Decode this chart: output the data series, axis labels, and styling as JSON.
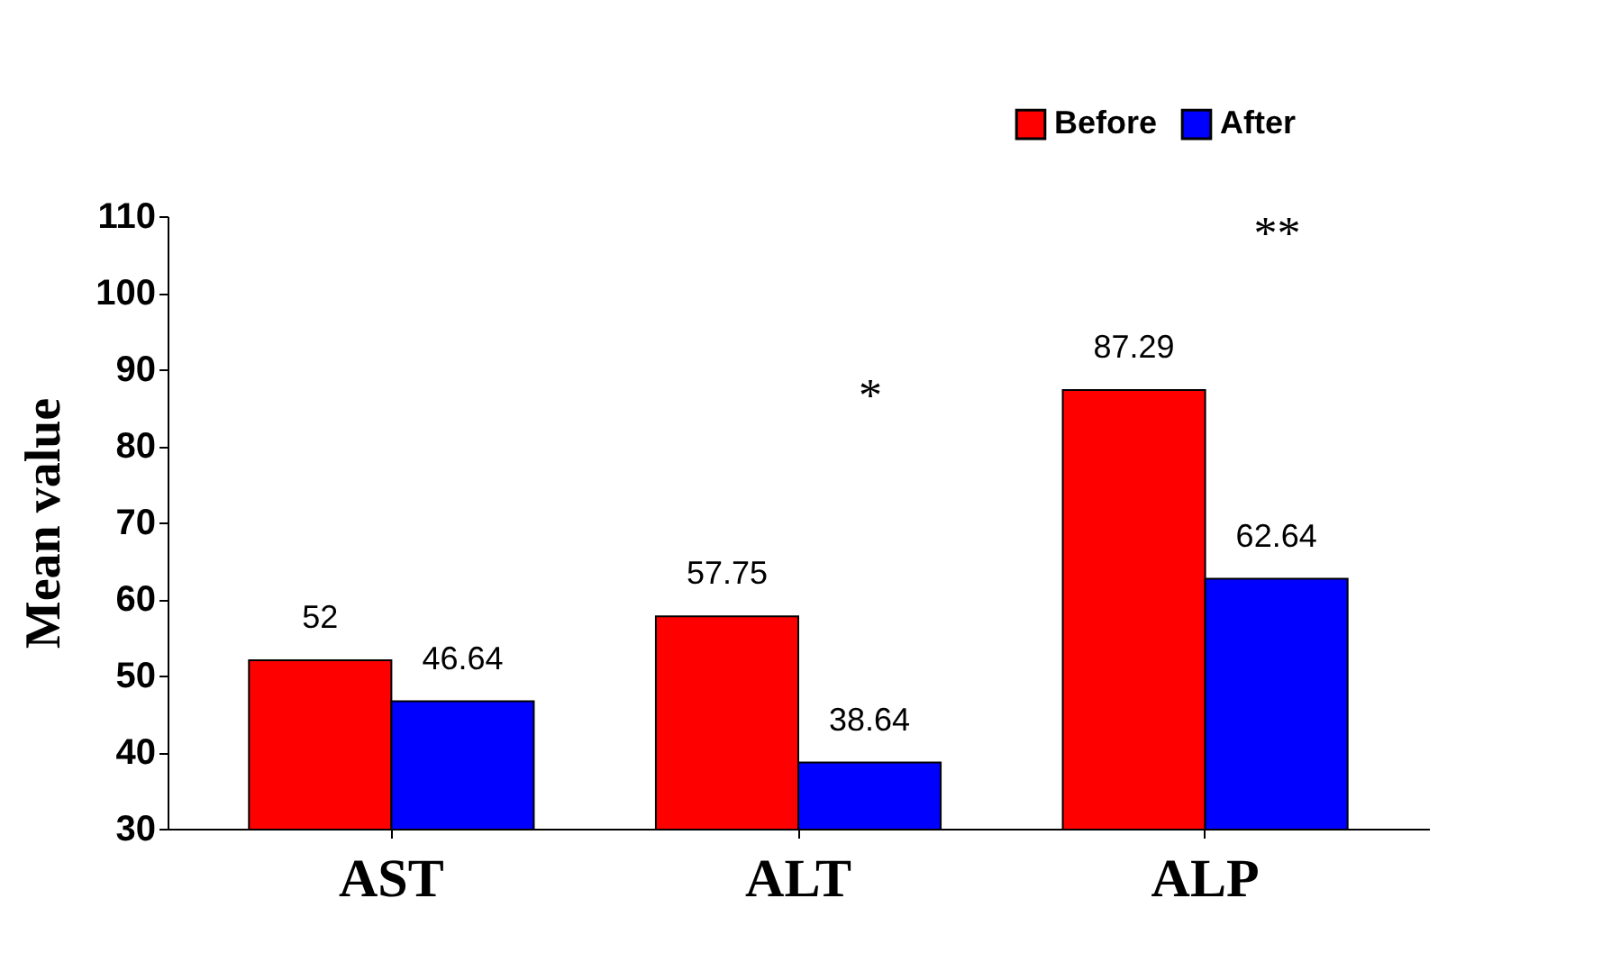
{
  "chart_data": {
    "type": "bar",
    "ylabel": "Mean value",
    "categories": [
      "AST",
      "ALT",
      "ALP"
    ],
    "series": [
      {
        "name": "Before",
        "color": "#ff0000",
        "values": [
          52,
          57.75,
          87.29
        ]
      },
      {
        "name": "After",
        "color": "#0000ff",
        "values": [
          46.64,
          38.64,
          62.64
        ]
      }
    ],
    "ylim": [
      30,
      110
    ],
    "yticks": [
      30,
      40,
      50,
      60,
      70,
      80,
      90,
      100,
      110
    ],
    "data_labels": true,
    "grid": false,
    "legend": "top right",
    "annotations": [
      "*",
      "**"
    ]
  }
}
